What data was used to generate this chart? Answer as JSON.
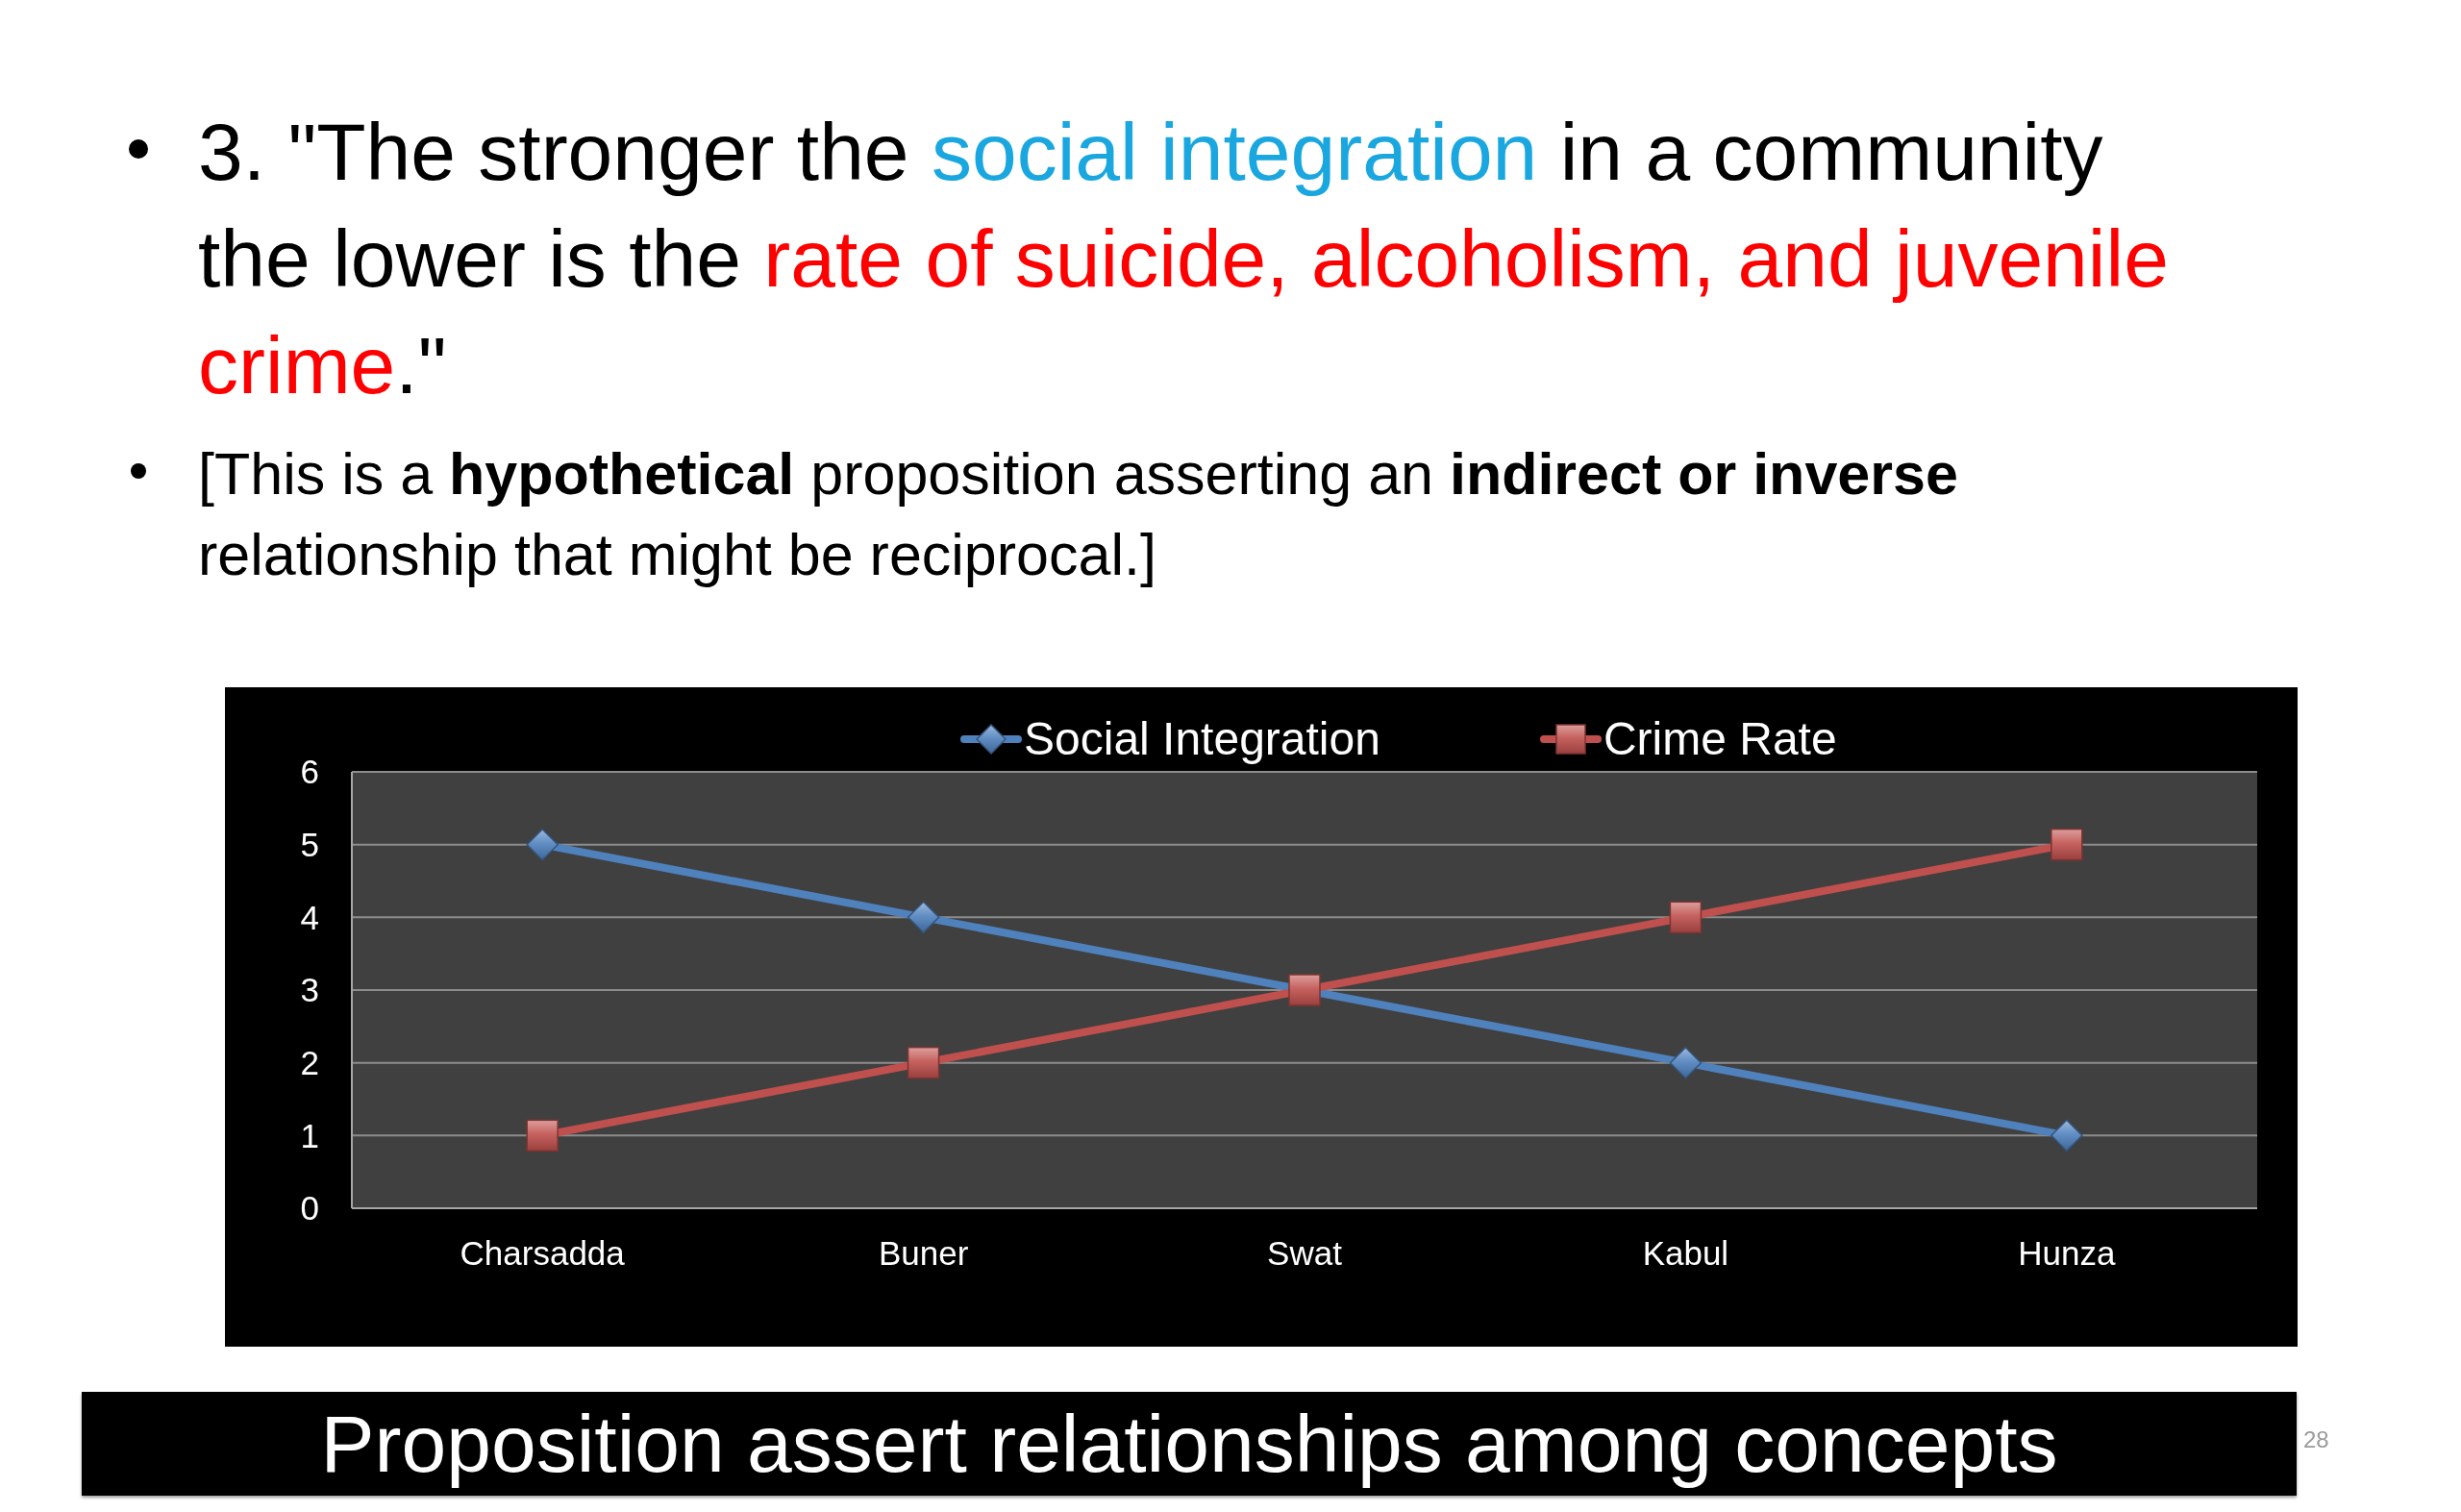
{
  "chart_data": {
    "type": "line",
    "title": "3. \"The stronger the social integration in a community the lower is the rate of suicide, alcoholism, and juvenile crime.\"",
    "subtitle": "[This is a hypothetical proposition asserting an indirect or inverse relationship that might be reciprocal.]",
    "annotations": [
      "Proposition assert relationships among concepts",
      "28"
    ],
    "categories": [
      "Charsadda",
      "Buner",
      "Swat",
      "Kabul",
      "Hunza"
    ],
    "series": [
      {
        "name": "Social Integration",
        "color": "#4f81bd",
        "marker": "diamond",
        "values": [
          5,
          4,
          3,
          2,
          1
        ]
      },
      {
        "name": "Crime Rate",
        "color": "#c0504d",
        "marker": "square",
        "values": [
          1,
          2,
          3,
          4,
          5
        ]
      }
    ],
    "ylim": [
      0,
      6
    ],
    "yticks": [
      0,
      1,
      2,
      3,
      4,
      5,
      6
    ],
    "grid": "y",
    "legend": "top",
    "line_style": "solid"
  }
}
